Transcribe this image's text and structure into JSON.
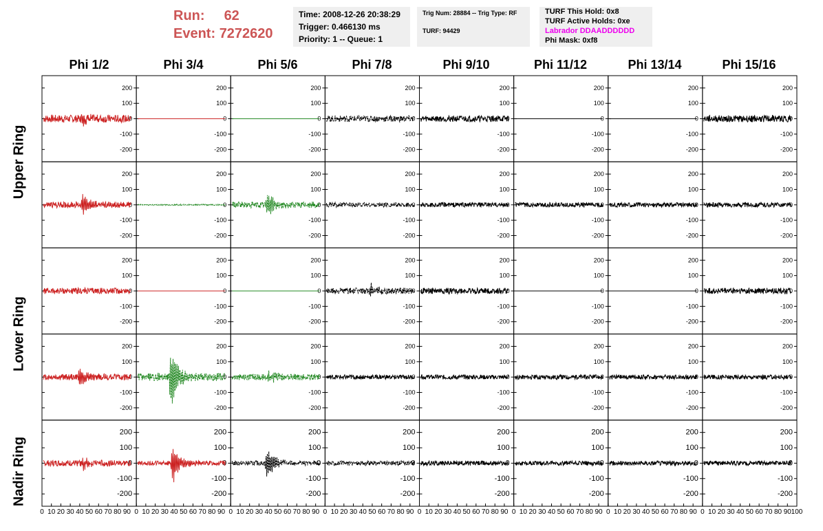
{
  "header": {
    "run_label": "Run:",
    "run_value": "62",
    "event_label": "Event:",
    "event_value": "7272620"
  },
  "info_panel_1": {
    "time": "Time: 2008-12-26 20:38:29",
    "trigger": "Trigger: 0.466130 ms",
    "priority": "Priority: 1 -- Queue: 1"
  },
  "info_panel_2": {
    "trig": "Trig Num: 28884 -- Trig Type: RF",
    "turf": "TURF: 94429"
  },
  "info_panel_3": {
    "this_hold": "TURF This Hold: 0x8",
    "active_holds": "TURF Active Holds: 0xe",
    "labrador": "Labrador DDAADDDDDD",
    "phi_mask": "Phi Mask: 0xf8"
  },
  "colors": {
    "red": "#cc2222",
    "green": "#228822",
    "black": "#000000",
    "magenta": "#ee00ee",
    "run_text": "#cc5555"
  },
  "chart_data": {
    "type": "line",
    "columns": [
      "Phi 1/2",
      "Phi 3/4",
      "Phi 5/6",
      "Phi 7/8",
      "Phi 9/10",
      "Phi 11/12",
      "Phi 13/14",
      "Phi 15/16"
    ],
    "rows": [
      "Upper Ring",
      "Upper Ring",
      "Lower Ring",
      "Lower Ring",
      "Nadir Ring"
    ],
    "row_labels": [
      "Upper Ring",
      "Lower Ring",
      "Nadir Ring"
    ],
    "xlim": [
      0,
      100
    ],
    "ylim": [
      -280,
      280
    ],
    "yticks": [
      200,
      100,
      0,
      -100,
      -200
    ],
    "xticks_text": "0 10 20 30 40 50 60 70 80 90 100",
    "traces": [
      [
        {
          "color": "red",
          "amp": 25,
          "burst": 45,
          "burstAmp": 45
        },
        {
          "color": "red",
          "amp": 0
        },
        {
          "color": "green",
          "amp": 0
        },
        {
          "color": "black",
          "amp": 20,
          "dashed": true
        },
        {
          "color": "black",
          "amp": 20
        },
        {
          "color": "black",
          "amp": 0
        },
        {
          "color": "black",
          "amp": 0
        },
        {
          "color": "black",
          "amp": 22
        }
      ],
      [
        {
          "color": "red",
          "amp": 20,
          "burst": 45,
          "burstAmp": 75
        },
        {
          "color": "green",
          "amp": 4,
          "dashed": true
        },
        {
          "color": "green",
          "amp": 20,
          "burst": 40,
          "burstAmp": 90,
          "dashed": true
        },
        {
          "color": "black",
          "amp": 15,
          "dashed": true
        },
        {
          "color": "black",
          "amp": 15
        },
        {
          "color": "black",
          "amp": 15
        },
        {
          "color": "black",
          "amp": 15
        },
        {
          "color": "black",
          "amp": 15
        }
      ],
      [
        {
          "color": "red",
          "amp": 20
        },
        {
          "color": "red",
          "amp": 0
        },
        {
          "color": "green",
          "amp": 0
        },
        {
          "color": "black",
          "amp": 20,
          "burst": 50,
          "burstAmp": 40,
          "dashed": true
        },
        {
          "color": "black",
          "amp": 20
        },
        {
          "color": "black",
          "amp": 0
        },
        {
          "color": "black",
          "amp": 0
        },
        {
          "color": "black",
          "amp": 20
        }
      ],
      [
        {
          "color": "red",
          "amp": 20,
          "burst": 42,
          "burstAmp": 65
        },
        {
          "color": "green",
          "amp": 25,
          "burst": 38,
          "burstAmp": 220,
          "dashed": true
        },
        {
          "color": "green",
          "amp": 20,
          "burst": 42,
          "burstAmp": 50,
          "dashed": true
        },
        {
          "color": "black",
          "amp": 15
        },
        {
          "color": "black",
          "amp": 15
        },
        {
          "color": "black",
          "amp": 15
        },
        {
          "color": "black",
          "amp": 15
        },
        {
          "color": "black",
          "amp": 15
        }
      ],
      [
        {
          "color": "red",
          "amp": 20,
          "burst": 45,
          "burstAmp": 40
        },
        {
          "color": "red",
          "amp": 15,
          "burst": 40,
          "burstAmp": 150
        },
        {
          "color": "black",
          "amp": 15,
          "burst": 40,
          "burstAmp": 120,
          "dashed": true
        },
        {
          "color": "black",
          "amp": 15,
          "dashed": true
        },
        {
          "color": "black",
          "amp": 15
        },
        {
          "color": "black",
          "amp": 15
        },
        {
          "color": "black",
          "amp": 15
        },
        {
          "color": "black",
          "amp": 15
        }
      ]
    ]
  }
}
